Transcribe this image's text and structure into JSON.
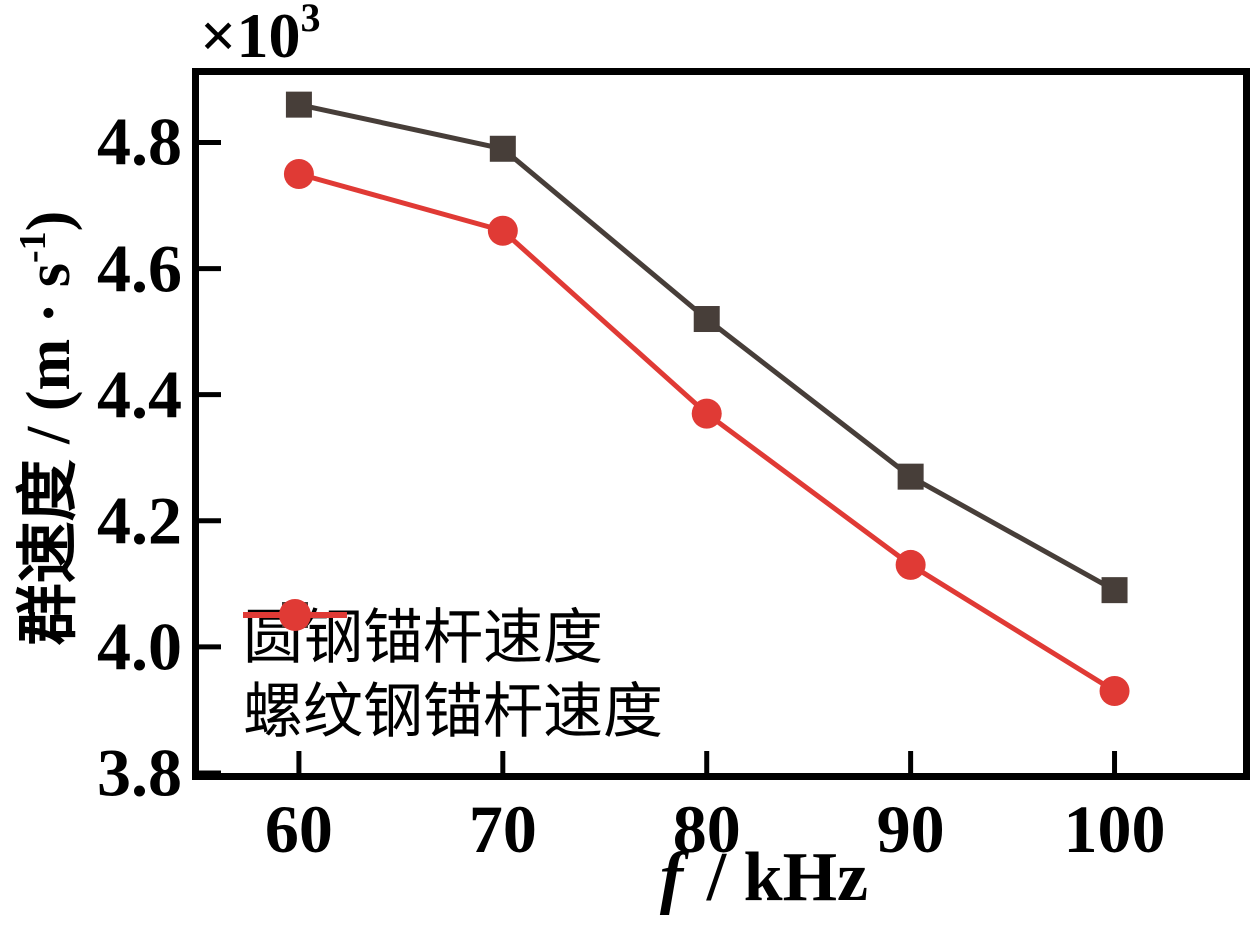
{
  "chart_data": {
    "type": "line",
    "title": "",
    "xlabel_italic": "f",
    "xlabel_rest": " / kHz",
    "ylabel_prefix": "群速度 / (m · s",
    "ylabel_sup": "-1",
    "ylabel_suffix": ")",
    "offset_base": "×10",
    "offset_exp": "3",
    "x": [
      60,
      70,
      80,
      90,
      100
    ],
    "series": [
      {
        "name": "圆钢锚杆速度",
        "values": [
          4.86,
          4.79,
          4.52,
          4.27,
          4.09
        ],
        "color": "#473e39",
        "marker": "square"
      },
      {
        "name": "螺纹钢锚杆速度",
        "values": [
          4.75,
          4.66,
          4.37,
          4.13,
          3.93
        ],
        "color": "#e03a35",
        "marker": "circle"
      }
    ],
    "value_multiplier": 1000,
    "x_ticks": [
      60,
      70,
      80,
      90,
      100
    ],
    "x_tick_labels": [
      "60",
      "70",
      "80",
      "90",
      "100"
    ],
    "y_ticks": [
      3.8,
      4.0,
      4.2,
      4.4,
      4.6,
      4.8
    ],
    "y_tick_labels": [
      "3.8",
      "4.0",
      "4.2",
      "4.4",
      "4.6",
      "4.8"
    ],
    "x_range": [
      55.1,
      106.3
    ],
    "y_range": [
      3.8,
      4.907
    ],
    "grid": false,
    "legend_position": "lower-left",
    "axis_color": "#000000",
    "background_color": "#ffffff"
  }
}
